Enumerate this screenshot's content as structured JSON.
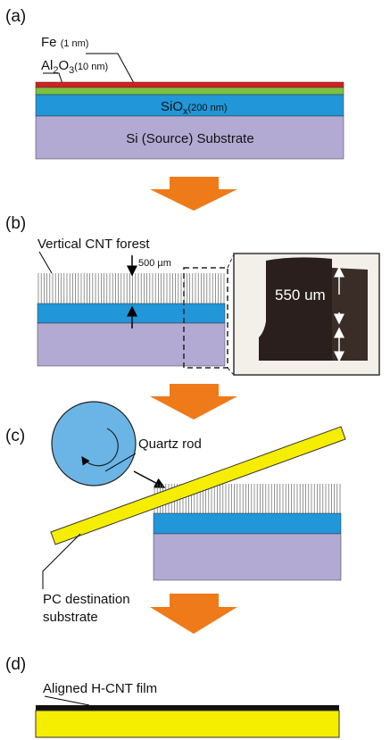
{
  "panels": [
    {
      "label": "(a)",
      "fe": "Fe",
      "fe_thickness": "(1 nm)",
      "al": "Al",
      "al_sub": "2",
      "o": "O",
      "o_sub": "3",
      "al2o3_thickness": "(10 nm)",
      "sio": "SiO",
      "sio_sub": "x",
      "sio_thickness": "(200 nm)",
      "substrate": "Si (Source) Substrate"
    },
    {
      "label": "(b)",
      "forest": "Vertical CNT forest",
      "height": "500 µm",
      "inset_height": "550 um"
    },
    {
      "label": "(c)",
      "rod": "Quartz rod",
      "destination_1": "PC destination",
      "destination_2": "substrate"
    },
    {
      "label": "(d)",
      "film": "Aligned H-CNT film"
    }
  ]
}
